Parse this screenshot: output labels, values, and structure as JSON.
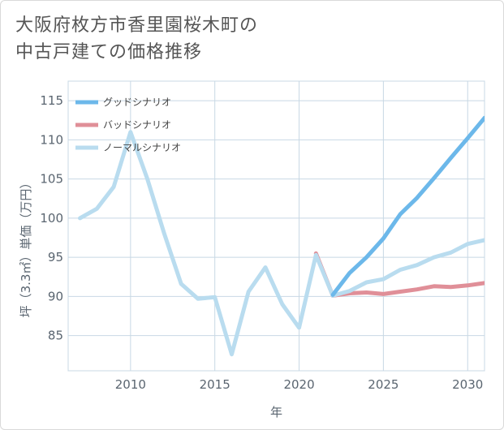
{
  "title_lines": [
    "大阪府枚方市香里園桜木町の",
    "中古戸建ての価格推移"
  ],
  "chart_data": {
    "type": "line",
    "title": "大阪府枚方市香里園桜木町の中古戸建ての価格推移",
    "xlabel": "年",
    "ylabel": "坪（3.3㎡）単価（万円）",
    "xlim": [
      2006.3,
      2031
    ],
    "ylim": [
      80.5,
      117.5
    ],
    "xticks": [
      2010,
      2015,
      2020,
      2025,
      2030
    ],
    "yticks": [
      85,
      90,
      95,
      100,
      105,
      110,
      115
    ],
    "grid": true,
    "legend_position": "top-left",
    "series": [
      {
        "name": "グッドシナリオ",
        "color": "#6cb8ea",
        "x": [
          2022,
          2023,
          2024,
          2025,
          2026,
          2027,
          2028,
          2029,
          2030,
          2031
        ],
        "values": [
          90.2,
          93.0,
          95.0,
          97.4,
          100.5,
          102.6,
          105.1,
          107.7,
          110.2,
          112.8
        ]
      },
      {
        "name": "バッドシナリオ",
        "color": "#e08f98",
        "x": [
          2021,
          2022,
          2023,
          2024,
          2025,
          2026,
          2027,
          2028,
          2029,
          2030,
          2031
        ],
        "values": [
          95.5,
          90.1,
          90.4,
          90.5,
          90.3,
          90.6,
          90.9,
          91.3,
          91.2,
          91.4,
          91.7
        ]
      },
      {
        "name": "ノーマルシナリオ",
        "color": "#b9dcef",
        "x": [
          2007,
          2008,
          2009,
          2010,
          2011,
          2012,
          2013,
          2014,
          2015,
          2016,
          2017,
          2018,
          2019,
          2020,
          2021,
          2022,
          2023,
          2024,
          2025,
          2026,
          2027,
          2028,
          2029,
          2030,
          2031
        ],
        "values": [
          100.0,
          101.2,
          104.0,
          111.0,
          105.0,
          98.0,
          91.6,
          89.7,
          89.9,
          82.6,
          90.6,
          93.7,
          89.0,
          86.0,
          95.3,
          90.1,
          90.7,
          91.8,
          92.2,
          93.4,
          94.0,
          95.0,
          95.6,
          96.7,
          97.2
        ]
      }
    ]
  }
}
